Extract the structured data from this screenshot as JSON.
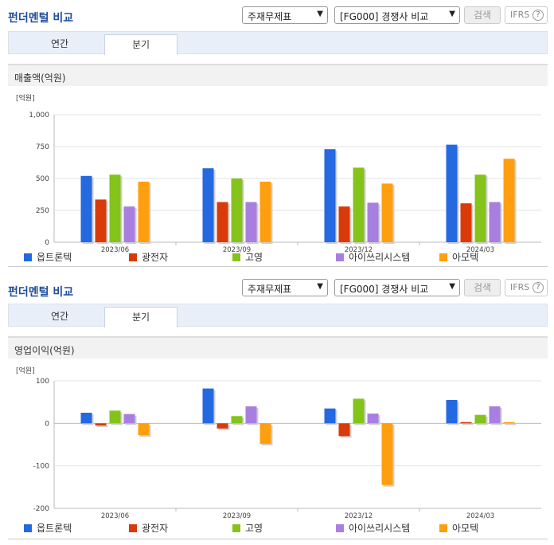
{
  "controls": {
    "dropdown1": "주재무제표",
    "dropdown2": "[FG000] 경쟁사 비교",
    "search": "검색",
    "ifrs": "IFRS",
    "help": "?"
  },
  "panels": [
    {
      "title": "펀더멘털 비교",
      "tabs": [
        "연간",
        "분기"
      ],
      "active_tab": 1,
      "metric": "매출액(억원)",
      "unit": "[억원]"
    },
    {
      "title": "펀더멘털 비교",
      "tabs": [
        "연간",
        "분기"
      ],
      "active_tab": 1,
      "metric": "영업이익(억원)",
      "unit": "[억원]"
    }
  ],
  "colors": {
    "옵트론텍": "#2469e0",
    "광전자": "#d93a0a",
    "고영": "#84c31a",
    "아이쓰리시스템": "#a87fe0",
    "아모텍": "#ff9f0f"
  },
  "chart_data": [
    {
      "type": "bar",
      "title": "매출액(억원)",
      "ylabel": "[억원]",
      "categories": [
        "2023/06",
        "2023/09",
        "2023/12",
        "2024/03"
      ],
      "ylim": [
        0,
        1000
      ],
      "yticks": [
        0,
        250,
        500,
        750,
        1000
      ],
      "ytick_labels": [
        "0",
        "250",
        "500",
        "750",
        "1,000"
      ],
      "series": [
        {
          "name": "옵트론텍",
          "values": [
            520,
            580,
            730,
            765
          ]
        },
        {
          "name": "광전자",
          "values": [
            335,
            315,
            280,
            305
          ]
        },
        {
          "name": "고영",
          "values": [
            530,
            500,
            585,
            530
          ]
        },
        {
          "name": "아이쓰리시스템",
          "values": [
            280,
            315,
            310,
            315
          ]
        },
        {
          "name": "아모텍",
          "values": [
            475,
            475,
            460,
            655
          ]
        }
      ]
    },
    {
      "type": "bar",
      "title": "영업이익(억원)",
      "ylabel": "[억원]",
      "categories": [
        "2023/06",
        "2023/09",
        "2023/12",
        "2024/03"
      ],
      "ylim": [
        -200,
        100
      ],
      "yticks": [
        -200,
        -100,
        0,
        100
      ],
      "ytick_labels": [
        "-200",
        "-100",
        "0",
        "100"
      ],
      "series": [
        {
          "name": "옵트론텍",
          "values": [
            25,
            82,
            35,
            55
          ]
        },
        {
          "name": "광전자",
          "values": [
            -5,
            -12,
            -30,
            3
          ]
        },
        {
          "name": "고영",
          "values": [
            30,
            17,
            58,
            20
          ]
        },
        {
          "name": "아이쓰리시스템",
          "values": [
            22,
            40,
            23,
            40
          ]
        },
        {
          "name": "아모텍",
          "values": [
            -28,
            -48,
            -145,
            3
          ]
        }
      ]
    }
  ]
}
